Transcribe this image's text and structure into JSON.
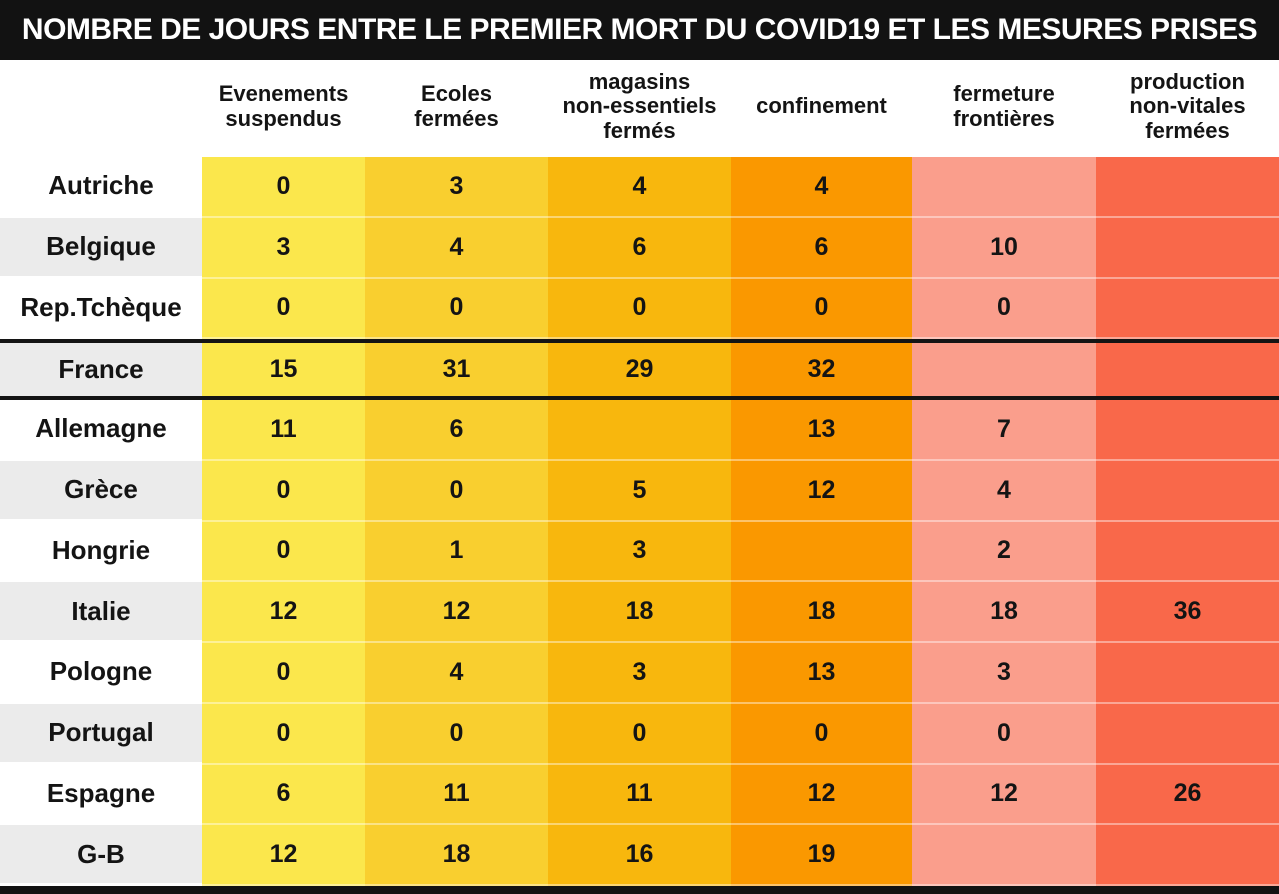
{
  "title": "NOMBRE DE JOURS ENTRE LE PREMIER MORT DU COVID19 ET LES MESURES PRISES",
  "display": {
    "columns": [
      "Evenements\nsuspendus",
      "Ecoles\nfermées",
      "magasins\nnon-essentiels\nfermés",
      "confinement",
      "fermeture\nfrontières",
      "production\nnon-vitales\nfermées"
    ]
  },
  "colors": {
    "title_bar_bg": "#121212",
    "title_text": "#ffffff",
    "label_row_white": "#ffffff",
    "label_row_gray": "#EBEBEB",
    "text": "#141414",
    "highlight_line": "#141414",
    "column_fills": [
      "#FBE74C",
      "#F9CF2F",
      "#F8B70D",
      "#FA9800",
      "#FA9E8C",
      "#F9684A"
    ]
  },
  "chart_data": {
    "type": "table",
    "title": "NOMBRE DE JOURS ENTRE LE PREMIER MORT DU COVID19 ET LES MESURES PRISES",
    "columns": [
      "Evenements suspendus",
      "Ecoles fermées",
      "magasins non-essentiels fermés",
      "confinement",
      "fermeture frontières",
      "production non-vitales fermées"
    ],
    "highlight_row": "France",
    "rows": [
      {
        "country": "Autriche",
        "values": [
          0,
          3,
          4,
          4,
          null,
          null
        ]
      },
      {
        "country": "Belgique",
        "values": [
          3,
          4,
          6,
          6,
          10,
          null
        ]
      },
      {
        "country": "Rep.Tchèque",
        "values": [
          0,
          0,
          0,
          0,
          0,
          null
        ]
      },
      {
        "country": "France",
        "values": [
          15,
          31,
          29,
          32,
          null,
          null
        ]
      },
      {
        "country": "Allemagne",
        "values": [
          11,
          6,
          null,
          13,
          7,
          null
        ]
      },
      {
        "country": "Grèce",
        "values": [
          0,
          0,
          5,
          12,
          4,
          null
        ]
      },
      {
        "country": "Hongrie",
        "values": [
          0,
          1,
          3,
          null,
          2,
          null
        ]
      },
      {
        "country": "Italie",
        "values": [
          12,
          12,
          18,
          18,
          18,
          36
        ]
      },
      {
        "country": "Pologne",
        "values": [
          0,
          4,
          3,
          13,
          3,
          null
        ]
      },
      {
        "country": "Portugal",
        "values": [
          0,
          0,
          0,
          0,
          0,
          null
        ]
      },
      {
        "country": "Espagne",
        "values": [
          6,
          11,
          11,
          12,
          12,
          26
        ]
      },
      {
        "country": "G-B",
        "values": [
          12,
          18,
          16,
          19,
          null,
          null
        ]
      }
    ]
  }
}
